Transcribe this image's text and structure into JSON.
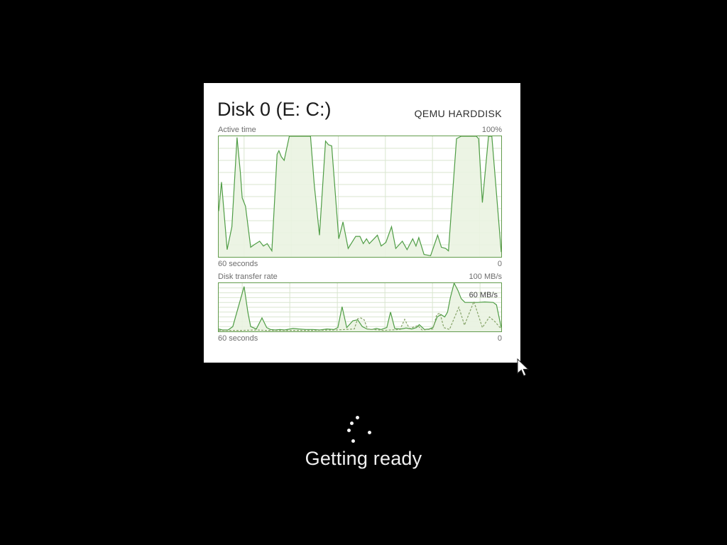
{
  "background_color": "#000000",
  "panel": {
    "title": "Disk 0 (E: C:)",
    "subtitle": "QEMU HARDDISK",
    "active_chart": {
      "label": "Active time",
      "max_label": "100%",
      "x_left_label": "60 seconds",
      "x_right_label": "0"
    },
    "transfer_chart": {
      "label": "Disk transfer rate",
      "max_label": "100 MB/s",
      "annotation": "60 MB/s",
      "x_left_label": "60 seconds",
      "x_right_label": "0"
    }
  },
  "loading": {
    "message": "Getting ready"
  },
  "colors": {
    "chart_border": "#639c4d",
    "chart_line": "#4f9d45",
    "chart_line_dashed": "#86a369",
    "chart_fill": "#eaf3e1",
    "chart_grid": "#d9e6cf",
    "panel_bg": "#ffffff",
    "label_text": "#6d6d6d"
  },
  "chart_data": [
    {
      "type": "area",
      "title": "Active time",
      "ylabel": "Active time (%)",
      "ylim": [
        0,
        100
      ],
      "x_range": 60,
      "x_axis": {
        "left_label": "60 seconds",
        "right_label": "0",
        "direction": "60s ago to now"
      },
      "grid": {
        "vlines_x": [
          5.4,
          15.4,
          25.4,
          35.4,
          45.4,
          55.4
        ],
        "h_step": 10,
        "grid_on": true
      },
      "legend": "none",
      "series": [
        {
          "name": "active-time",
          "style": "solid",
          "points": [
            [
              0,
              38
            ],
            [
              0.6,
              62
            ],
            [
              1.8,
              6
            ],
            [
              2.8,
              25
            ],
            [
              3.9,
              99
            ],
            [
              4.6,
              70
            ],
            [
              5,
              49
            ],
            [
              5.7,
              42
            ],
            [
              6.8,
              8
            ],
            [
              7.5,
              10
            ],
            [
              8.7,
              13
            ],
            [
              9.5,
              9
            ],
            [
              10.3,
              11
            ],
            [
              11.3,
              5
            ],
            [
              12.4,
              85
            ],
            [
              12.8,
              88
            ],
            [
              13.3,
              83
            ],
            [
              13.9,
              80
            ],
            [
              15,
              100
            ],
            [
              19.5,
              100
            ],
            [
              20.3,
              60
            ],
            [
              21.4,
              18
            ],
            [
              22.7,
              96
            ],
            [
              23.3,
              93
            ],
            [
              24,
              92
            ],
            [
              25.5,
              15
            ],
            [
              26.4,
              29
            ],
            [
              27.5,
              7
            ],
            [
              29.1,
              17
            ],
            [
              30,
              17
            ],
            [
              30.7,
              11
            ],
            [
              31.4,
              15
            ],
            [
              32,
              11
            ],
            [
              33.7,
              18
            ],
            [
              34.5,
              9
            ],
            [
              35.5,
              12
            ],
            [
              36.7,
              25
            ],
            [
              37.6,
              7
            ],
            [
              39,
              13
            ],
            [
              40,
              6
            ],
            [
              41.2,
              15
            ],
            [
              41.9,
              9
            ],
            [
              42.5,
              16
            ],
            [
              43.6,
              2
            ],
            [
              45,
              1
            ],
            [
              46.5,
              18
            ],
            [
              47.3,
              8
            ],
            [
              48.2,
              7
            ],
            [
              48.8,
              5
            ],
            [
              50.5,
              98
            ],
            [
              51.5,
              100
            ],
            [
              54.7,
              100
            ],
            [
              55.2,
              98
            ],
            [
              56,
              45
            ],
            [
              57.3,
              100
            ],
            [
              58,
              100
            ],
            [
              60,
              4
            ]
          ]
        }
      ]
    },
    {
      "type": "area",
      "title": "Disk transfer rate",
      "ylabel": "MB/s",
      "ylim": [
        0,
        100
      ],
      "x_range": 60,
      "x_axis": {
        "left_label": "60 seconds",
        "right_label": "0",
        "direction": "60s ago to now"
      },
      "grid": {
        "vlines_x": [
          5.0,
          15.1,
          25.2,
          35.3,
          45.4,
          55.5
        ],
        "h_step": 10,
        "grid_on": true
      },
      "annotation": {
        "text": "60 MB/s",
        "refers_to": "plateau at 60 MB/s near right edge"
      },
      "series": [
        {
          "name": "transfer-rate-solid",
          "style": "solid",
          "points": [
            [
              0,
              5
            ],
            [
              0.8,
              3
            ],
            [
              2,
              3
            ],
            [
              3,
              10
            ],
            [
              5.4,
              93
            ],
            [
              6.2,
              40
            ],
            [
              6.8,
              10
            ],
            [
              8,
              5
            ],
            [
              9.2,
              28
            ],
            [
              10.2,
              8
            ],
            [
              11,
              4
            ],
            [
              12,
              3
            ],
            [
              13,
              4
            ],
            [
              14,
              3
            ],
            [
              15.8,
              6
            ],
            [
              17,
              5
            ],
            [
              18.5,
              4
            ],
            [
              20,
              4
            ],
            [
              21.5,
              3
            ],
            [
              23,
              5
            ],
            [
              24.5,
              4
            ],
            [
              25.3,
              8
            ],
            [
              26.2,
              51
            ],
            [
              27.2,
              8
            ],
            [
              28.5,
              22
            ],
            [
              29.5,
              24
            ],
            [
              30.5,
              10
            ],
            [
              31.5,
              5
            ],
            [
              32.5,
              4
            ],
            [
              33.5,
              6
            ],
            [
              34.5,
              4
            ],
            [
              35.7,
              8
            ],
            [
              36.5,
              40
            ],
            [
              37.4,
              6
            ],
            [
              38.7,
              5
            ],
            [
              39.8,
              7
            ],
            [
              41,
              5
            ],
            [
              42,
              8
            ],
            [
              42.6,
              14
            ],
            [
              43.7,
              4
            ],
            [
              44.7,
              5
            ],
            [
              45.5,
              8
            ],
            [
              46.4,
              30
            ],
            [
              47.2,
              35
            ],
            [
              48,
              30
            ],
            [
              48.6,
              40
            ],
            [
              49.2,
              70
            ],
            [
              50,
              100
            ],
            [
              50.8,
              85
            ],
            [
              51.5,
              68
            ],
            [
              52.3,
              60
            ],
            [
              55,
              60
            ],
            [
              56.5,
              61
            ],
            [
              58.3,
              60
            ],
            [
              59,
              55
            ],
            [
              60,
              8
            ]
          ]
        },
        {
          "name": "transfer-rate-dashed",
          "style": "dashed",
          "points": [
            [
              0,
              2
            ],
            [
              5,
              2
            ],
            [
              8,
              3
            ],
            [
              10,
              2
            ],
            [
              15,
              2
            ],
            [
              20,
              2
            ],
            [
              25,
              3
            ],
            [
              28.8,
              5
            ],
            [
              29.5,
              26
            ],
            [
              30.2,
              28
            ],
            [
              30.9,
              24
            ],
            [
              31.6,
              5
            ],
            [
              35,
              2
            ],
            [
              38.5,
              4
            ],
            [
              39.5,
              25
            ],
            [
              40.5,
              6
            ],
            [
              42.3,
              12
            ],
            [
              43.2,
              3
            ],
            [
              45.5,
              5
            ],
            [
              46.3,
              35
            ],
            [
              47,
              38
            ],
            [
              47.8,
              8
            ],
            [
              49,
              4
            ],
            [
              51,
              50
            ],
            [
              52.2,
              13
            ],
            [
              54.2,
              62
            ],
            [
              56,
              8
            ],
            [
              57.5,
              30
            ],
            [
              58.7,
              20
            ],
            [
              60,
              5
            ]
          ]
        }
      ]
    }
  ]
}
